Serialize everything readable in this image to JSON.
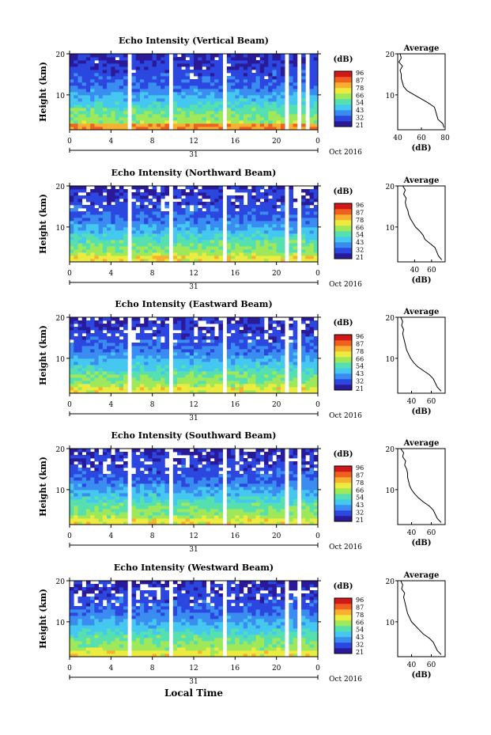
{
  "colorbar_ticks": [
    "96",
    "87",
    "78",
    "66",
    "54",
    "43",
    "32",
    "21"
  ],
  "colorbar_unit": "(dB)",
  "x_tick_labels": [
    "0",
    "4",
    "8",
    "12",
    "16",
    "20",
    "0"
  ],
  "y_tick_labels": [
    "20",
    "10"
  ],
  "date_day": "31",
  "date_month_year": "Oct 2016",
  "x_axis_title": "Local Time",
  "average_title": "Average",
  "average_xlabel": "(dB)",
  "colors": {
    "colormap": [
      "#2a1a9a",
      "#2c46e0",
      "#3a8cf0",
      "#44c8f0",
      "#56e0b0",
      "#9ee85a",
      "#ecec40",
      "#f8b030",
      "#f06020",
      "#d01818"
    ]
  },
  "chart_data": [
    {
      "type": "heatmap",
      "title": "Echo Intensity (Vertical Beam)",
      "ylabel": "Height (km)",
      "xlim": [
        0,
        24
      ],
      "ylim": [
        1.5,
        20
      ],
      "clim": [
        21,
        96
      ],
      "data_gaps_hours": [
        [
          5.8,
          6.1
        ],
        [
          9.6,
          9.9
        ],
        [
          14.9,
          15.2
        ],
        [
          17.9,
          18.1
        ],
        [
          20.8,
          21.0
        ],
        [
          21.9,
          22.3
        ],
        [
          22.8,
          23.1
        ]
      ],
      "avg_xlim": [
        40,
        80
      ],
      "avg_xticks": [
        "40",
        "60",
        "80"
      ],
      "avg_profile": {
        "height": [
          2,
          3,
          4,
          5,
          6,
          7,
          8,
          9,
          10,
          11,
          12,
          13,
          14,
          15,
          16,
          17,
          18,
          19,
          20
        ],
        "db": [
          79,
          78,
          74,
          73,
          72,
          71,
          66,
          60,
          54,
          48,
          45,
          44,
          43,
          43,
          42,
          44,
          41,
          43,
          42
        ]
      }
    },
    {
      "type": "heatmap",
      "title": "Echo Intensity (Northward Beam)",
      "ylabel": "Height (km)",
      "xlim": [
        0,
        24
      ],
      "ylim": [
        1.5,
        20
      ],
      "clim": [
        21,
        96
      ],
      "data_gaps_hours": [
        [
          5.8,
          6.1
        ],
        [
          9.6,
          9.9
        ],
        [
          14.9,
          15.2
        ],
        [
          17.9,
          18.1
        ],
        [
          20.8,
          21.0
        ],
        [
          21.9,
          22.3
        ]
      ],
      "avg_xlim": [
        20,
        76
      ],
      "avg_xticks": [
        "40",
        "60"
      ],
      "avg_profile": {
        "height": [
          2,
          3,
          4,
          5,
          6,
          7,
          8,
          9,
          10,
          11,
          12,
          13,
          14,
          15,
          16,
          17,
          18,
          19,
          20
        ],
        "db": [
          72,
          68,
          66,
          64,
          58,
          52,
          50,
          46,
          41,
          38,
          35,
          33,
          32,
          30,
          29,
          30,
          27,
          29,
          26
        ]
      }
    },
    {
      "type": "heatmap",
      "title": "Echo Intensity (Eastward Beam)",
      "ylabel": "Height (km)",
      "xlim": [
        0,
        24
      ],
      "ylim": [
        1.5,
        20
      ],
      "clim": [
        21,
        96
      ],
      "data_gaps_hours": [
        [
          5.8,
          6.1
        ],
        [
          9.6,
          9.9
        ],
        [
          14.9,
          15.2
        ],
        [
          17.9,
          18.1
        ],
        [
          20.8,
          21.0
        ],
        [
          21.9,
          22.3
        ]
      ],
      "avg_xlim": [
        26,
        74
      ],
      "avg_xticks": [
        "40",
        "60"
      ],
      "avg_profile": {
        "height": [
          2,
          3,
          4,
          5,
          6,
          7,
          8,
          9,
          10,
          11,
          12,
          13,
          14,
          15,
          16,
          17,
          18,
          19,
          20
        ],
        "db": [
          70,
          66,
          64,
          62,
          58,
          52,
          46,
          42,
          39,
          37,
          35,
          34,
          33,
          32,
          31,
          32,
          30,
          31,
          29
        ]
      }
    },
    {
      "type": "heatmap",
      "title": "Echo Intensity (Southward Beam)",
      "ylabel": "Height (km)",
      "xlim": [
        0,
        24
      ],
      "ylim": [
        1.5,
        20
      ],
      "clim": [
        21,
        96
      ],
      "data_gaps_hours": [
        [
          5.8,
          6.1
        ],
        [
          9.6,
          9.9
        ],
        [
          14.9,
          15.2
        ],
        [
          17.9,
          18.1
        ],
        [
          20.8,
          21.0
        ],
        [
          21.9,
          22.3
        ]
      ],
      "avg_xlim": [
        26,
        74
      ],
      "avg_xticks": [
        "40",
        "60"
      ],
      "avg_profile": {
        "height": [
          2,
          3,
          4,
          5,
          6,
          7,
          8,
          9,
          10,
          11,
          12,
          13,
          14,
          15,
          16,
          17,
          18,
          19,
          20
        ],
        "db": [
          70,
          66,
          64,
          62,
          58,
          52,
          47,
          43,
          40,
          38,
          37,
          36,
          36,
          35,
          33,
          34,
          31,
          32,
          29
        ]
      }
    },
    {
      "type": "heatmap",
      "title": "Echo Intensity (Westward Beam)",
      "ylabel": "Height (km)",
      "xlim": [
        0,
        24
      ],
      "ylim": [
        1.5,
        20
      ],
      "clim": [
        21,
        96
      ],
      "data_gaps_hours": [
        [
          5.8,
          6.1
        ],
        [
          9.6,
          9.9
        ],
        [
          14.9,
          15.2
        ],
        [
          17.9,
          18.1
        ],
        [
          20.8,
          21.0
        ],
        [
          21.9,
          22.3
        ]
      ],
      "avg_xlim": [
        26,
        74
      ],
      "avg_xticks": [
        "40",
        "60"
      ],
      "avg_profile": {
        "height": [
          2,
          3,
          4,
          5,
          6,
          7,
          8,
          9,
          10,
          11,
          12,
          13,
          14,
          15,
          16,
          17,
          18,
          19,
          20
        ],
        "db": [
          70,
          66,
          64,
          62,
          58,
          52,
          48,
          44,
          40,
          38,
          36,
          35,
          34,
          33,
          32,
          33,
          30,
          31,
          29
        ]
      }
    }
  ]
}
